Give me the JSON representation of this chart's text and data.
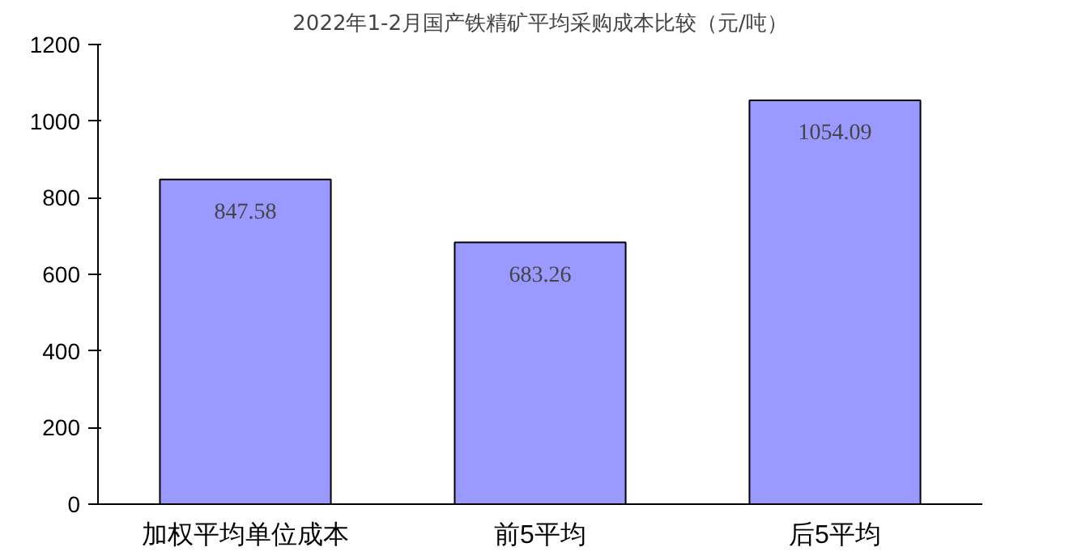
{
  "chart_data": {
    "type": "bar",
    "title": "2022年1-2月国产铁精矿平均采购成本比较（元/吨）",
    "categories": [
      "加权平均单位成本",
      "前5平均",
      "后5平均"
    ],
    "values": [
      847.58,
      683.26,
      1054.09
    ],
    "color": "#9999ff",
    "ylim": [
      0,
      1200
    ],
    "yticks": [
      0,
      200,
      400,
      600,
      800,
      1000,
      1200
    ],
    "grid": false,
    "data_labels": true
  }
}
